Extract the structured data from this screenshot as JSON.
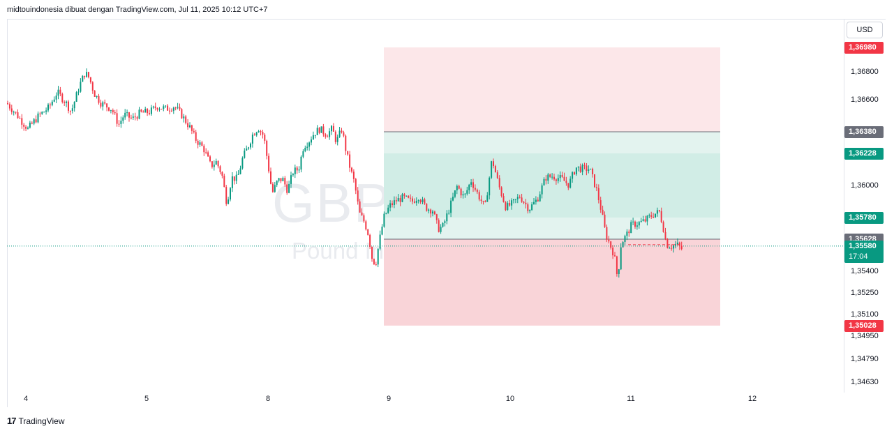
{
  "header": {
    "attribution": "midtouindonesia dibuat dengan TradingView.com, Jul 11, 2025 10:12 UTC+7"
  },
  "watermark": {
    "symbol": "GBPUSD, 30",
    "description": "Pound Inggris / Dollar AS"
  },
  "currency_button": "USD",
  "footer": {
    "logo_mark": "17",
    "logo_text": "TradingView"
  },
  "colors": {
    "up": "#089981",
    "down": "#f23645",
    "grid_line": "#e0e3eb",
    "stop_zone": "#fce7e9",
    "target_zone": "#e3f3ef",
    "target_inner": "#d1ede6",
    "loss_zone": "#f9d4d8"
  },
  "chart_data": {
    "type": "candlestick",
    "symbol": "GBPUSD",
    "interval": "30",
    "x_ticks": [
      "4",
      "5",
      "8",
      "9",
      "10",
      "11",
      "12"
    ],
    "y_ticks": [
      "1,36800",
      "1,36600",
      "1,36000",
      "1,35400",
      "1,35250",
      "1,35100",
      "1,34950",
      "1,34790",
      "1,34630"
    ],
    "ylim": [
      1.3455,
      1.3712
    ],
    "price_labels": [
      {
        "text": "1,36980",
        "value": 1.3698,
        "color": "#f23645"
      },
      {
        "text": "1,36380",
        "value": 1.3638,
        "color": "#6a6d78"
      },
      {
        "text": "1,36228",
        "value": 1.36228,
        "color": "#089981"
      },
      {
        "text": "1,35780",
        "value": 1.3578,
        "color": "#089981"
      },
      {
        "text": "1,35628",
        "value": 1.35628,
        "color": "#6a6d78"
      },
      {
        "text": "1,35028",
        "value": 1.35028,
        "color": "#f23645"
      }
    ],
    "last_price": {
      "text": "1,35580",
      "countdown": "17:04",
      "value": 1.3558
    },
    "zones": [
      {
        "name": "stop",
        "from": 1.3638,
        "to": 1.3698
      },
      {
        "name": "target-outer",
        "from": 1.35628,
        "to": 1.3638
      },
      {
        "name": "target-inner",
        "from": 1.3578,
        "to": 1.36228
      },
      {
        "name": "loss",
        "from": 1.35028,
        "to": 1.35628
      }
    ],
    "price_path": [
      [
        0,
        1.3658
      ],
      [
        14,
        1.365
      ],
      [
        30,
        1.364
      ],
      [
        45,
        1.3649
      ],
      [
        60,
        1.3655
      ],
      [
        72,
        1.3666
      ],
      [
        85,
        1.3658
      ],
      [
        92,
        1.3652
      ],
      [
        105,
        1.3672
      ],
      [
        112,
        1.368
      ],
      [
        118,
        1.3676
      ],
      [
        125,
        1.3665
      ],
      [
        135,
        1.3658
      ],
      [
        150,
        1.3654
      ],
      [
        160,
        1.3643
      ],
      [
        168,
        1.365
      ],
      [
        180,
        1.3647
      ],
      [
        190,
        1.3651
      ],
      [
        205,
        1.3652
      ],
      [
        215,
        1.3656
      ],
      [
        228,
        1.3654
      ],
      [
        240,
        1.3656
      ],
      [
        250,
        1.365
      ],
      [
        262,
        1.3641
      ],
      [
        270,
        1.3633
      ],
      [
        282,
        1.3626
      ],
      [
        292,
        1.3614
      ],
      [
        300,
        1.3617
      ],
      [
        308,
        1.3608
      ],
      [
        315,
        1.3588
      ],
      [
        322,
        1.3606
      ],
      [
        330,
        1.3605
      ],
      [
        338,
        1.362
      ],
      [
        345,
        1.3627
      ],
      [
        352,
        1.3636
      ],
      [
        360,
        1.3641
      ],
      [
        368,
        1.3635
      ],
      [
        375,
        1.3612
      ],
      [
        380,
        1.3595
      ],
      [
        388,
        1.3604
      ],
      [
        395,
        1.3605
      ],
      [
        402,
        1.3597
      ],
      [
        410,
        1.361
      ],
      [
        418,
        1.3612
      ],
      [
        425,
        1.3628
      ],
      [
        432,
        1.3631
      ],
      [
        440,
        1.3637
      ],
      [
        448,
        1.364
      ],
      [
        458,
        1.3636
      ],
      [
        466,
        1.364
      ],
      [
        472,
        1.3631
      ],
      [
        480,
        1.364
      ],
      [
        486,
        1.3624
      ],
      [
        492,
        1.3612
      ],
      [
        498,
        1.3602
      ],
      [
        505,
        1.3581
      ],
      [
        512,
        1.3575
      ],
      [
        518,
        1.3566
      ],
      [
        523,
        1.355
      ],
      [
        528,
        1.3545
      ],
      [
        533,
        1.356
      ],
      [
        540,
        1.3578
      ],
      [
        548,
        1.3586
      ],
      [
        558,
        1.359
      ],
      [
        568,
        1.3592
      ],
      [
        580,
        1.3589
      ],
      [
        590,
        1.3593
      ],
      [
        600,
        1.3585
      ],
      [
        610,
        1.3583
      ],
      [
        618,
        1.357
      ],
      [
        625,
        1.3572
      ],
      [
        635,
        1.3586
      ],
      [
        645,
        1.36
      ],
      [
        655,
        1.3592
      ],
      [
        665,
        1.3604
      ],
      [
        675,
        1.3594
      ],
      [
        685,
        1.3585
      ],
      [
        695,
        1.3619
      ],
      [
        705,
        1.36
      ],
      [
        715,
        1.3585
      ],
      [
        725,
        1.3588
      ],
      [
        735,
        1.3593
      ],
      [
        748,
        1.3584
      ],
      [
        760,
        1.3591
      ],
      [
        772,
        1.3606
      ],
      [
        782,
        1.3607
      ],
      [
        795,
        1.3605
      ],
      [
        805,
        1.3601
      ],
      [
        815,
        1.3613
      ],
      [
        825,
        1.3612
      ],
      [
        835,
        1.3612
      ],
      [
        845,
        1.3597
      ],
      [
        852,
        1.3582
      ],
      [
        858,
        1.3566
      ],
      [
        864,
        1.3559
      ],
      [
        870,
        1.3552
      ],
      [
        875,
        1.3535
      ],
      [
        880,
        1.356
      ],
      [
        888,
        1.3566
      ],
      [
        895,
        1.3573
      ],
      [
        905,
        1.3574
      ],
      [
        915,
        1.3576
      ],
      [
        925,
        1.358
      ],
      [
        935,
        1.3582
      ],
      [
        940,
        1.3572
      ],
      [
        945,
        1.3559
      ],
      [
        952,
        1.3558
      ],
      [
        960,
        1.3559
      ],
      [
        967,
        1.3556
      ]
    ]
  }
}
